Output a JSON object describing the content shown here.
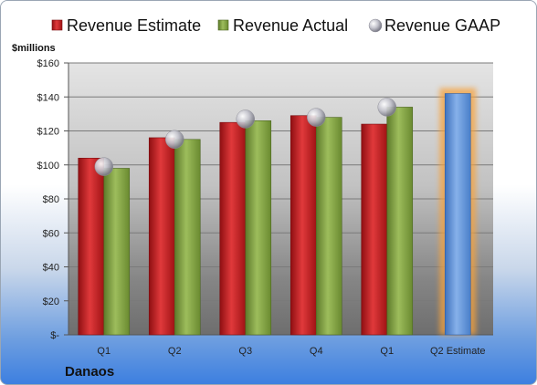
{
  "company": "Danaos",
  "chart_data": {
    "type": "bar",
    "unit_label": "$millions",
    "categories": [
      "Q1",
      "Q2",
      "Q3",
      "Q4",
      "Q1",
      "Q2 Estimate"
    ],
    "series": [
      {
        "name": "Revenue Estimate",
        "color": "#c0191c",
        "values": [
          104,
          116,
          125,
          129,
          124,
          null
        ]
      },
      {
        "name": "Revenue Actual",
        "color": "#7f9f3c",
        "values": [
          98,
          115,
          126,
          128,
          134,
          null
        ]
      },
      {
        "name": "Revenue GAAP",
        "color": "#b9b9c4",
        "values": [
          99,
          115,
          127,
          128,
          134,
          null
        ]
      },
      {
        "name": "",
        "color": "#5b8fd4",
        "values": [
          null,
          null,
          null,
          null,
          null,
          142
        ]
      }
    ],
    "highlight_color": "#f6a23c",
    "ylim": [
      0,
      160
    ],
    "yticks": [
      0,
      20,
      40,
      60,
      80,
      100,
      120,
      140,
      160
    ],
    "ytick_labels": [
      "$-",
      "$20",
      "$40",
      "$60",
      "$80",
      "$100",
      "$120",
      "$140",
      "$160"
    ],
    "legend_position": "top",
    "grid": true
  }
}
